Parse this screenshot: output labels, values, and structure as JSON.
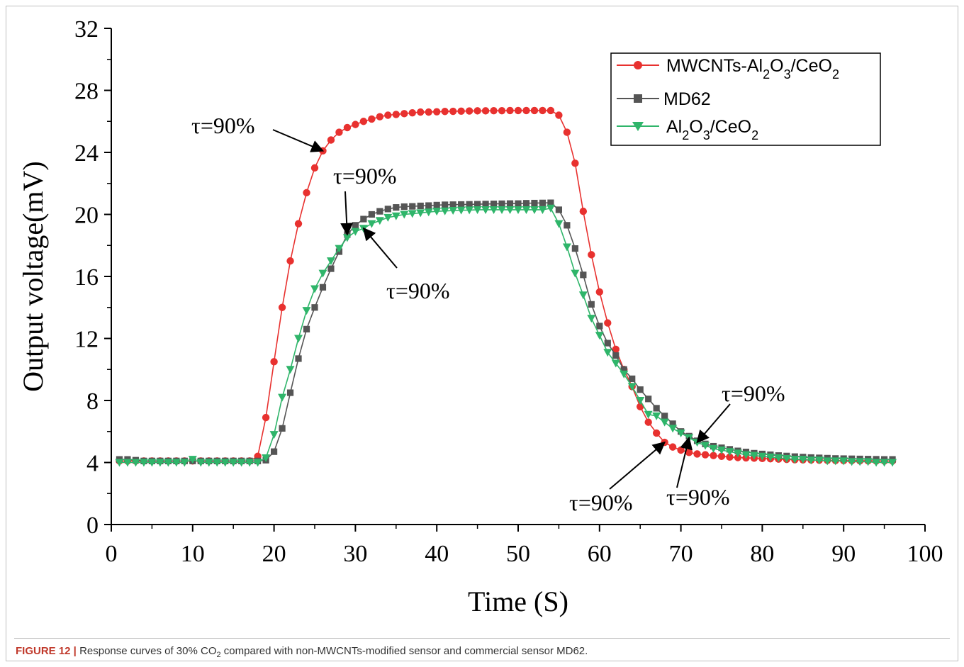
{
  "figure": {
    "caption_label": "FIGURE 12 |",
    "caption_pre": "Response curves of 30% CO",
    "caption_sub": "2",
    "caption_post": " compared with non-MWCNTs-modified sensor and commercial sensor MD62."
  },
  "chart_data": {
    "type": "line",
    "title": "",
    "xlabel": "Time (S)",
    "ylabel": "Output voltage(mV)",
    "xlim": [
      0,
      100
    ],
    "ylim": [
      0,
      32
    ],
    "xticks": [
      0,
      10,
      20,
      30,
      40,
      50,
      60,
      70,
      80,
      90,
      100
    ],
    "yticks": [
      0,
      4,
      8,
      12,
      16,
      20,
      24,
      28,
      32
    ],
    "grid": false,
    "legend_position": "top-right",
    "series": [
      {
        "name": "MWCNTs-Al2O3/CeO2",
        "color": "#e8312f",
        "marker": "circle",
        "x": [
          1,
          2,
          3,
          4,
          5,
          6,
          7,
          8,
          9,
          10,
          11,
          12,
          13,
          14,
          15,
          16,
          17,
          18,
          19,
          20,
          21,
          22,
          23,
          24,
          25,
          26,
          27,
          28,
          29,
          30,
          31,
          32,
          33,
          34,
          35,
          36,
          37,
          38,
          39,
          40,
          41,
          42,
          43,
          44,
          45,
          46,
          47,
          48,
          49,
          50,
          51,
          52,
          53,
          54,
          55,
          56,
          57,
          58,
          59,
          60,
          61,
          62,
          63,
          64,
          65,
          66,
          67,
          68,
          69,
          70,
          71,
          72,
          73,
          74,
          75,
          76,
          77,
          78,
          79,
          80,
          81,
          82,
          83,
          84,
          85,
          86,
          87,
          88,
          89,
          90,
          91,
          92,
          93,
          94,
          95,
          96
        ],
        "y": [
          4.1,
          4.1,
          4.1,
          4.1,
          4.1,
          4.1,
          4.1,
          4.1,
          4.1,
          4.1,
          4.1,
          4.1,
          4.1,
          4.1,
          4.1,
          4.1,
          4.1,
          4.4,
          6.9,
          10.5,
          14.0,
          17.0,
          19.4,
          21.4,
          23.0,
          24.1,
          24.8,
          25.3,
          25.6,
          25.8,
          26.0,
          26.15,
          26.3,
          26.4,
          26.45,
          26.5,
          26.55,
          26.6,
          26.6,
          26.62,
          26.64,
          26.65,
          26.66,
          26.67,
          26.68,
          26.68,
          26.69,
          26.69,
          26.7,
          26.7,
          26.7,
          26.7,
          26.7,
          26.7,
          26.4,
          25.3,
          23.3,
          20.2,
          17.4,
          15.0,
          13.0,
          11.3,
          10.0,
          8.9,
          7.6,
          6.6,
          5.9,
          5.3,
          5.0,
          4.8,
          4.65,
          4.55,
          4.5,
          4.45,
          4.4,
          4.35,
          4.32,
          4.3,
          4.28,
          4.26,
          4.24,
          4.22,
          4.2,
          4.18,
          4.17,
          4.16,
          4.15,
          4.14,
          4.13,
          4.12,
          4.12,
          4.11,
          4.11,
          4.1,
          4.1,
          4.1
        ]
      },
      {
        "name": "MD62",
        "color": "#555555",
        "marker": "square",
        "x": [
          1,
          2,
          3,
          4,
          5,
          6,
          7,
          8,
          9,
          10,
          11,
          12,
          13,
          14,
          15,
          16,
          17,
          18,
          19,
          20,
          21,
          22,
          23,
          24,
          25,
          26,
          27,
          28,
          29,
          30,
          31,
          32,
          33,
          34,
          35,
          36,
          37,
          38,
          39,
          40,
          41,
          42,
          43,
          44,
          45,
          46,
          47,
          48,
          49,
          50,
          51,
          52,
          53,
          54,
          55,
          56,
          57,
          58,
          59,
          60,
          61,
          62,
          63,
          64,
          65,
          66,
          67,
          68,
          69,
          70,
          71,
          72,
          73,
          74,
          75,
          76,
          77,
          78,
          79,
          80,
          81,
          82,
          83,
          84,
          85,
          86,
          87,
          88,
          89,
          90,
          91,
          92,
          93,
          94,
          95,
          96
        ],
        "y": [
          4.2,
          4.2,
          4.15,
          4.1,
          4.1,
          4.1,
          4.1,
          4.1,
          4.1,
          4.1,
          4.1,
          4.1,
          4.1,
          4.1,
          4.1,
          4.1,
          4.1,
          4.1,
          4.15,
          4.7,
          6.2,
          8.5,
          10.7,
          12.6,
          14.0,
          15.3,
          16.5,
          17.6,
          18.7,
          19.3,
          19.7,
          20.0,
          20.2,
          20.35,
          20.45,
          20.5,
          20.52,
          20.55,
          20.57,
          20.6,
          20.62,
          20.63,
          20.64,
          20.65,
          20.66,
          20.67,
          20.68,
          20.69,
          20.7,
          20.7,
          20.72,
          20.73,
          20.74,
          20.75,
          20.3,
          19.3,
          17.8,
          16.1,
          14.2,
          12.8,
          11.7,
          10.9,
          10.0,
          9.4,
          8.7,
          8.1,
          7.5,
          7.0,
          6.5,
          6.0,
          5.7,
          5.4,
          5.2,
          5.05,
          4.95,
          4.85,
          4.75,
          4.68,
          4.6,
          4.55,
          4.5,
          4.45,
          4.42,
          4.38,
          4.35,
          4.32,
          4.3,
          4.28,
          4.26,
          4.25,
          4.24,
          4.23,
          4.22,
          4.21,
          4.2,
          4.2
        ]
      },
      {
        "name": "Al2O3/CeO2",
        "color": "#2fb56a",
        "marker": "triangle-down",
        "x": [
          1,
          2,
          3,
          4,
          5,
          6,
          7,
          8,
          9,
          10,
          11,
          12,
          13,
          14,
          15,
          16,
          17,
          18,
          19,
          20,
          21,
          22,
          23,
          24,
          25,
          26,
          27,
          28,
          29,
          30,
          31,
          32,
          33,
          34,
          35,
          36,
          37,
          38,
          39,
          40,
          41,
          42,
          43,
          44,
          45,
          46,
          47,
          48,
          49,
          50,
          51,
          52,
          53,
          54,
          55,
          56,
          57,
          58,
          59,
          60,
          61,
          62,
          63,
          64,
          65,
          66,
          67,
          68,
          69,
          70,
          71,
          72,
          73,
          74,
          75,
          76,
          77,
          78,
          79,
          80,
          81,
          82,
          83,
          84,
          85,
          86,
          87,
          88,
          89,
          90,
          91,
          92,
          93,
          94,
          95,
          96
        ],
        "y": [
          4.0,
          4.0,
          4.0,
          4.0,
          4.0,
          4.0,
          4.0,
          4.0,
          4.0,
          4.2,
          4.0,
          4.0,
          4.0,
          4.0,
          4.0,
          4.0,
          4.0,
          4.0,
          4.3,
          5.8,
          8.2,
          10.0,
          12.0,
          13.8,
          15.2,
          16.2,
          17.0,
          17.8,
          18.5,
          18.9,
          19.1,
          19.4,
          19.6,
          19.8,
          19.9,
          20.0,
          20.05,
          20.1,
          20.15,
          20.2,
          20.22,
          20.25,
          20.27,
          20.28,
          20.3,
          20.3,
          20.3,
          20.3,
          20.3,
          20.3,
          20.3,
          20.3,
          20.3,
          20.4,
          19.4,
          17.9,
          16.2,
          14.8,
          13.3,
          12.2,
          11.1,
          10.4,
          9.7,
          8.9,
          8.0,
          7.1,
          7.0,
          6.6,
          6.2,
          5.9,
          5.6,
          5.3,
          5.1,
          4.9,
          4.8,
          4.7,
          4.6,
          4.5,
          4.45,
          4.4,
          4.35,
          4.3,
          4.25,
          4.2,
          4.2,
          4.15,
          4.15,
          4.1,
          4.1,
          4.1,
          4.05,
          4.05,
          4.05,
          4.0,
          4.0,
          4.0
        ]
      }
    ],
    "annotations": [
      {
        "text": "τ=90%",
        "target_x": 26,
        "target_y": 24.1
      },
      {
        "text": "τ=90%",
        "target_x": 29,
        "target_y": 18.7
      },
      {
        "text": "τ=90%",
        "target_x": 31,
        "target_y": 19.1
      },
      {
        "text": "τ=90%",
        "target_x": 72,
        "target_y": 5.3
      },
      {
        "text": "τ=90%",
        "target_x": 68,
        "target_y": 5.3
      },
      {
        "text": "τ=90%",
        "target_x": 71,
        "target_y": 5.6
      }
    ]
  },
  "legend": {
    "line1": {
      "pre": "MWCNTs-Al",
      "s1": "2",
      "mid": "O",
      "s2": "3",
      "post": "/CeO",
      "s3": "2"
    },
    "line2": {
      "text": "MD62"
    },
    "line3": {
      "pre": "Al",
      "s1": "2",
      "mid": "O",
      "s2": "3",
      "post": "/CeO",
      "s3": "2"
    }
  }
}
